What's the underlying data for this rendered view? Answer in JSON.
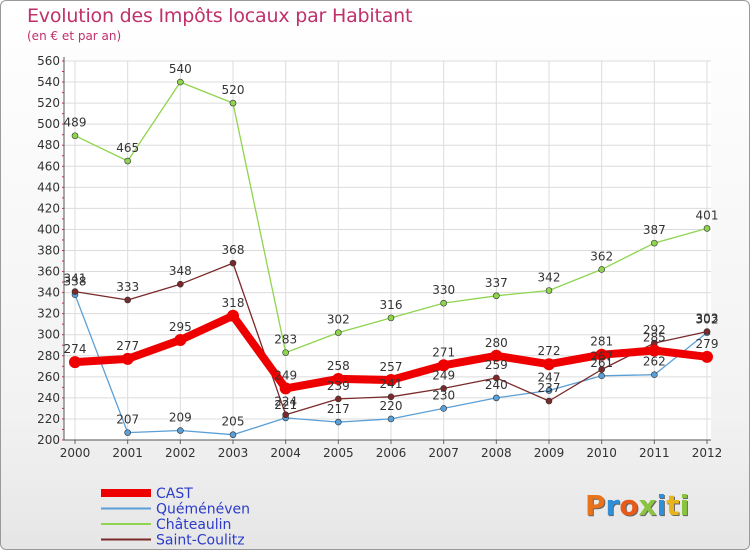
{
  "title": "Evolution des Impôts locaux par Habitant",
  "subtitle": "(en € et par an)",
  "logo_text": "Proxiti",
  "chart_data": {
    "type": "line",
    "x": [
      "2000",
      "2001",
      "2002",
      "2003",
      "2004",
      "2005",
      "2006",
      "2007",
      "2008",
      "2009",
      "2010",
      "2011",
      "2012"
    ],
    "ylim": [
      200,
      560
    ],
    "yticks": [
      200,
      220,
      240,
      260,
      280,
      300,
      320,
      340,
      360,
      380,
      400,
      420,
      440,
      460,
      480,
      500,
      520,
      540,
      560
    ],
    "grid": true,
    "legend_position": "bottom-left",
    "series": [
      {
        "name": "CAST",
        "color": "#ee0000",
        "values": [
          274,
          277,
          295,
          318,
          249,
          258,
          257,
          271,
          280,
          272,
          281,
          285,
          279
        ]
      },
      {
        "name": "Quéménéven",
        "color": "#5a9fd6",
        "values": [
          338,
          207,
          209,
          205,
          221,
          217,
          220,
          230,
          240,
          247,
          261,
          262,
          302
        ]
      },
      {
        "name": "Châteaulin",
        "color": "#8fd44e",
        "values": [
          489,
          465,
          540,
          520,
          283,
          302,
          316,
          330,
          337,
          342,
          362,
          387,
          401
        ]
      },
      {
        "name": "Saint-Coulitz",
        "color": "#7a2a2a",
        "values": [
          341,
          333,
          348,
          368,
          224,
          239,
          241,
          249,
          259,
          237,
          267,
          292,
          303
        ]
      }
    ]
  }
}
